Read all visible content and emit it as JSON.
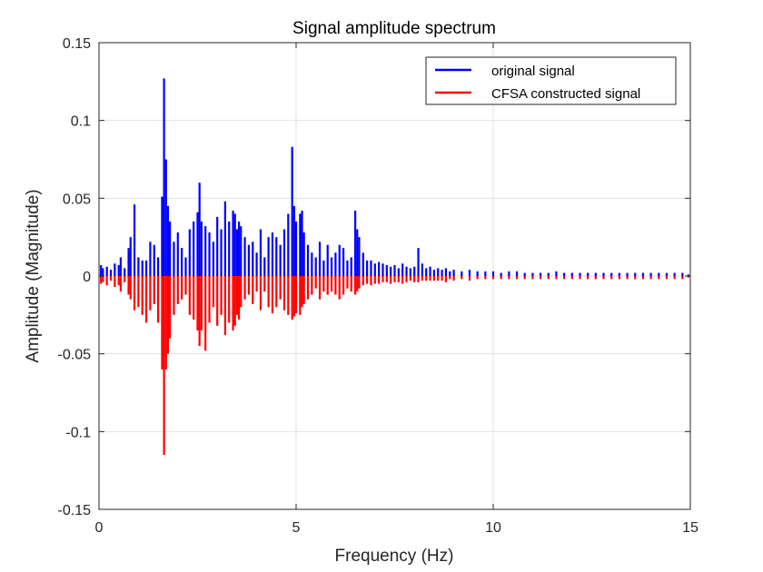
{
  "chart_data": {
    "type": "bar",
    "title": "Signal amplitude spectrum",
    "xlabel": "Frequency (Hz)",
    "ylabel": "Amplitude (Magnitude)",
    "xlim": [
      0,
      15
    ],
    "ylim": [
      -0.15,
      0.15
    ],
    "xticks": [
      0,
      5,
      10,
      15
    ],
    "xtick_labels": [
      "0",
      "5",
      "10",
      "15"
    ],
    "yticks": [
      0.15,
      0.1,
      0.05,
      0,
      -0.05,
      -0.1,
      -0.15
    ],
    "ytick_labels": [
      "0.15",
      "0.1",
      "0.05",
      "0",
      "-0.05",
      "-0.1",
      "-0.15"
    ],
    "grid": true,
    "legend_position": "top-right",
    "colors": {
      "original": "#0000ff",
      "constructed": "#ff0000",
      "grid": "#e3e3e3",
      "axes": "#262626"
    },
    "series": [
      {
        "name": "original signal",
        "color": "#0000ff",
        "x": [
          0.05,
          0.1,
          0.2,
          0.3,
          0.4,
          0.5,
          0.55,
          0.65,
          0.75,
          0.8,
          0.9,
          1.0,
          1.1,
          1.2,
          1.3,
          1.4,
          1.5,
          1.6,
          1.65,
          1.7,
          1.75,
          1.8,
          1.9,
          2.0,
          2.1,
          2.2,
          2.3,
          2.4,
          2.5,
          2.55,
          2.6,
          2.7,
          2.8,
          2.9,
          3.0,
          3.1,
          3.2,
          3.3,
          3.4,
          3.45,
          3.5,
          3.55,
          3.6,
          3.7,
          3.8,
          3.9,
          4.0,
          4.1,
          4.2,
          4.3,
          4.4,
          4.5,
          4.6,
          4.7,
          4.8,
          4.9,
          4.95,
          5.0,
          5.1,
          5.15,
          5.2,
          5.3,
          5.4,
          5.5,
          5.6,
          5.7,
          5.8,
          5.9,
          6.0,
          6.1,
          6.2,
          6.3,
          6.4,
          6.5,
          6.55,
          6.6,
          6.7,
          6.8,
          6.9,
          7.0,
          7.1,
          7.2,
          7.3,
          7.4,
          7.5,
          7.6,
          7.7,
          7.8,
          7.9,
          8.0,
          8.1,
          8.2,
          8.3,
          8.4,
          8.5,
          8.6,
          8.7,
          8.8,
          8.9,
          9.0,
          9.2,
          9.4,
          9.6,
          9.8,
          10.0,
          10.2,
          10.4,
          10.6,
          10.8,
          11.0,
          11.2,
          11.4,
          11.6,
          11.8,
          12.0,
          12.2,
          12.4,
          12.6,
          12.8,
          13.0,
          13.2,
          13.4,
          13.6,
          13.8,
          14.0,
          14.2,
          14.4,
          14.6,
          14.8,
          14.95
        ],
        "values": [
          0.007,
          0.005,
          0.006,
          0.004,
          0.008,
          0.007,
          0.012,
          0.005,
          0.018,
          0.025,
          0.046,
          0.012,
          0.01,
          0.01,
          0.022,
          0.02,
          0.012,
          0.051,
          0.127,
          0.075,
          0.045,
          0.035,
          0.022,
          0.028,
          0.018,
          0.012,
          0.03,
          0.035,
          0.041,
          0.06,
          0.035,
          0.032,
          0.028,
          0.022,
          0.038,
          0.03,
          0.048,
          0.035,
          0.042,
          0.04,
          0.03,
          0.035,
          0.032,
          0.025,
          0.02,
          0.022,
          0.015,
          0.03,
          0.012,
          0.025,
          0.028,
          0.025,
          0.02,
          0.03,
          0.04,
          0.083,
          0.045,
          0.035,
          0.04,
          0.042,
          0.028,
          0.02,
          0.015,
          0.012,
          0.022,
          0.01,
          0.02,
          0.012,
          0.015,
          0.02,
          0.018,
          0.01,
          0.012,
          0.042,
          0.03,
          0.025,
          0.015,
          0.01,
          0.01,
          0.008,
          0.009,
          0.008,
          0.007,
          0.006,
          0.007,
          0.005,
          0.008,
          0.006,
          0.005,
          0.006,
          0.018,
          0.008,
          0.005,
          0.006,
          0.004,
          0.005,
          0.004,
          0.005,
          0.003,
          0.004,
          0.003,
          0.004,
          0.003,
          0.003,
          0.003,
          0.002,
          0.003,
          0.003,
          0.002,
          0.002,
          0.002,
          0.002,
          0.003,
          0.002,
          0.002,
          0.002,
          0.002,
          0.002,
          0.002,
          0.002,
          0.002,
          0.002,
          0.002,
          0.002,
          0.002,
          0.002,
          0.002,
          0.002,
          0.002,
          0.001
        ]
      },
      {
        "name": "CFSA constructed signal",
        "color": "#ff0000",
        "x": [
          0.05,
          0.1,
          0.2,
          0.3,
          0.4,
          0.5,
          0.55,
          0.65,
          0.75,
          0.8,
          0.9,
          1.0,
          1.1,
          1.2,
          1.3,
          1.4,
          1.5,
          1.6,
          1.65,
          1.7,
          1.75,
          1.8,
          1.9,
          2.0,
          2.1,
          2.2,
          2.3,
          2.4,
          2.5,
          2.55,
          2.6,
          2.7,
          2.8,
          2.9,
          3.0,
          3.1,
          3.2,
          3.3,
          3.4,
          3.45,
          3.5,
          3.55,
          3.6,
          3.7,
          3.8,
          3.9,
          4.0,
          4.1,
          4.2,
          4.3,
          4.4,
          4.5,
          4.6,
          4.7,
          4.8,
          4.9,
          4.95,
          5.0,
          5.1,
          5.15,
          5.2,
          5.3,
          5.4,
          5.5,
          5.6,
          5.7,
          5.8,
          5.9,
          6.0,
          6.1,
          6.2,
          6.3,
          6.4,
          6.5,
          6.55,
          6.6,
          6.7,
          6.8,
          6.9,
          7.0,
          7.1,
          7.2,
          7.3,
          7.4,
          7.5,
          7.6,
          7.7,
          7.8,
          7.9,
          8.0,
          8.1,
          8.2,
          8.3,
          8.4,
          8.5,
          8.6,
          8.7,
          8.8,
          8.9,
          9.0,
          9.2,
          9.4,
          9.6,
          9.8,
          10.0,
          10.2,
          10.4,
          10.6,
          10.8,
          11.0,
          11.2,
          11.4,
          11.6,
          11.8,
          12.0,
          12.2,
          12.4,
          12.6,
          12.8,
          13.0,
          13.2,
          13.4,
          13.6,
          13.8,
          14.0,
          14.2,
          14.4,
          14.6,
          14.8,
          14.95
        ],
        "values": [
          -0.005,
          -0.004,
          -0.006,
          -0.003,
          -0.007,
          -0.006,
          -0.01,
          -0.004,
          -0.012,
          -0.015,
          -0.022,
          -0.02,
          -0.025,
          -0.03,
          -0.022,
          -0.018,
          -0.03,
          -0.06,
          -0.115,
          -0.06,
          -0.05,
          -0.04,
          -0.025,
          -0.018,
          -0.015,
          -0.012,
          -0.025,
          -0.028,
          -0.035,
          -0.045,
          -0.035,
          -0.048,
          -0.03,
          -0.02,
          -0.032,
          -0.025,
          -0.038,
          -0.03,
          -0.035,
          -0.032,
          -0.025,
          -0.028,
          -0.02,
          -0.015,
          -0.012,
          -0.018,
          -0.01,
          -0.022,
          -0.01,
          -0.02,
          -0.024,
          -0.02,
          -0.015,
          -0.022,
          -0.025,
          -0.028,
          -0.026,
          -0.024,
          -0.025,
          -0.02,
          -0.018,
          -0.015,
          -0.012,
          -0.008,
          -0.015,
          -0.01,
          -0.012,
          -0.01,
          -0.012,
          -0.015,
          -0.012,
          -0.008,
          -0.01,
          -0.012,
          -0.01,
          -0.008,
          -0.006,
          -0.005,
          -0.006,
          -0.005,
          -0.005,
          -0.004,
          -0.004,
          -0.005,
          -0.004,
          -0.004,
          -0.005,
          -0.004,
          -0.003,
          -0.004,
          -0.004,
          -0.003,
          -0.003,
          -0.003,
          -0.003,
          -0.003,
          -0.003,
          -0.004,
          -0.002,
          -0.003,
          -0.002,
          -0.003,
          -0.002,
          -0.002,
          -0.002,
          -0.002,
          -0.002,
          -0.002,
          -0.002,
          -0.002,
          -0.002,
          -0.002,
          -0.002,
          -0.002,
          -0.002,
          -0.002,
          -0.002,
          -0.002,
          -0.002,
          -0.002,
          -0.002,
          -0.002,
          -0.002,
          -0.002,
          -0.002,
          -0.002,
          -0.002,
          -0.002,
          -0.002,
          -0.001
        ]
      }
    ]
  }
}
